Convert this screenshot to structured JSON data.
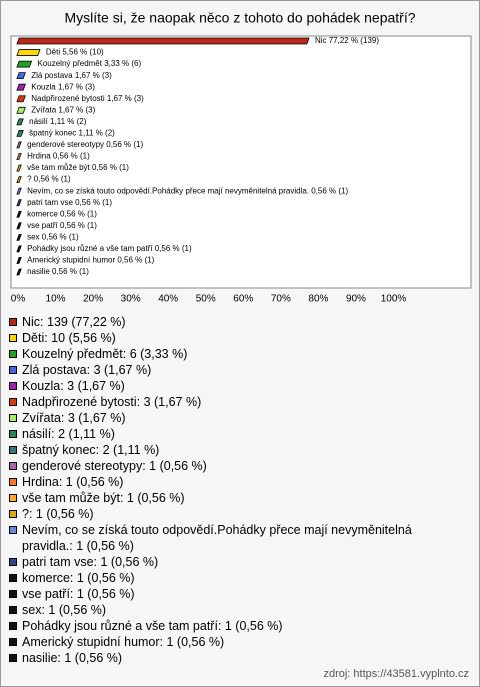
{
  "chart_data": {
    "type": "bar",
    "orientation": "horizontal",
    "title": "Myslíte si, že naopak něco z tohoto do pohádek nepatří?",
    "categories": [
      "Nic",
      "Děti",
      "Kouzelný předmět",
      "Zlá postava",
      "Kouzla",
      "Nadpřirozené bytosti",
      "Zvířata",
      "násilí",
      "špatný konec",
      "genderové stereotypy",
      "Hrdina",
      "vše tam může být",
      "?",
      "Nevím, co se získá touto odpovědí.Pohádky přece mají  nevyměnitelná pravidla.",
      "patri tam vse",
      "komerce",
      "vse patří",
      "sex",
      "Pohádky jsou různé a vše tam patří",
      "Americký stupidní humor",
      "nasilie"
    ],
    "values": [
      77.22,
      5.56,
      3.33,
      1.67,
      1.67,
      1.67,
      1.67,
      1.11,
      1.11,
      0.56,
      0.56,
      0.56,
      0.56,
      0.56,
      0.56,
      0.56,
      0.56,
      0.56,
      0.56,
      0.56,
      0.56
    ],
    "value_labels": [
      "Nic 77,22 % (139)",
      "Děti 5,56 % (10)",
      "Kouzelný předmět 3,33 % (6)",
      "Zlá postava 1,67 % (3)",
      "Kouzla 1,67 % (3)",
      "Nadpřirozené bytosti 1,67 % (3)",
      "Zvířata 1,67 % (3)",
      "násilí 1,11 % (2)",
      "špatný konec 1,11 % (2)",
      "genderové stereotypy 0,56 % (1)",
      "Hrdina 0,56 % (1)",
      "vše tam může být 0,56 % (1)",
      "? 0,56 % (1)",
      "Nevím, co se získá touto odpovědí.Pohádky přece mají  nevyměnitelná pravidla. 0,56 % (1)",
      "patri tam vse 0,56 % (1)",
      "komerce 0,56 % (1)",
      "vse patří 0,56 % (1)",
      "sex 0,56 % (1)",
      "Pohádky jsou různé a vše tam patří 0,56 % (1)",
      "Americký stupidní humor 0,56 % (1)",
      "nasilie 0,56 % (1)"
    ],
    "legend_labels": [
      "Nic: 139 (77,22 %)",
      "Děti: 10 (5,56 %)",
      "Kouzelný předmět: 6 (3,33 %)",
      "Zlá postava: 3 (1,67 %)",
      "Kouzla: 3 (1,67 %)",
      "Nadpřirozené bytosti: 3 (1,67 %)",
      "Zvířata: 3 (1,67 %)",
      "násilí: 2 (1,11 %)",
      "špatný konec: 2 (1,11 %)",
      "genderové stereotypy: 1 (0,56 %)",
      "Hrdina: 1 (0,56 %)",
      "vše tam může být: 1 (0,56 %)",
      "?: 1 (0,56 %)",
      "Nevím, co se získá touto odpovědí.Pohádky přece mají  nevyměnitelná pravidla.: 1 (0,56 %)",
      "patri tam vse: 1 (0,56 %)",
      "komerce: 1 (0,56 %)",
      "vse patří: 1 (0,56 %)",
      "sex: 1 (0,56 %)",
      "Pohádky jsou různé a vše tam patří: 1 (0,56 %)",
      "Americký stupidní humor: 1 (0,56 %)",
      "nasilie: 1 (0,56 %)"
    ],
    "colors": [
      "#b8281a",
      "#ffd700",
      "#22a022",
      "#4466dd",
      "#a020b0",
      "#d8380f",
      "#a8ee60",
      "#228855",
      "#337777",
      "#aa66aa",
      "#ff7722",
      "#ffaa22",
      "#ddaa00",
      "#6688dd",
      "#334488",
      "#111111",
      "#111111",
      "#111111",
      "#111111",
      "#111111",
      "#111111"
    ],
    "xlim": [
      0,
      100
    ],
    "xticks": [
      {
        "value": 0,
        "label": "0%"
      },
      {
        "value": 10,
        "label": "10%"
      },
      {
        "value": 20,
        "label": "20%"
      },
      {
        "value": 30,
        "label": "30%"
      },
      {
        "value": 40,
        "label": "40%"
      },
      {
        "value": 50,
        "label": "50%"
      },
      {
        "value": 60,
        "label": "60%"
      },
      {
        "value": 70,
        "label": "70%"
      },
      {
        "value": 80,
        "label": "80%"
      },
      {
        "value": 90,
        "label": "90%"
      },
      {
        "value": 100,
        "label": "100%"
      }
    ],
    "grid": false,
    "source": "zdroj: https://43581.vyplnto.cz"
  }
}
